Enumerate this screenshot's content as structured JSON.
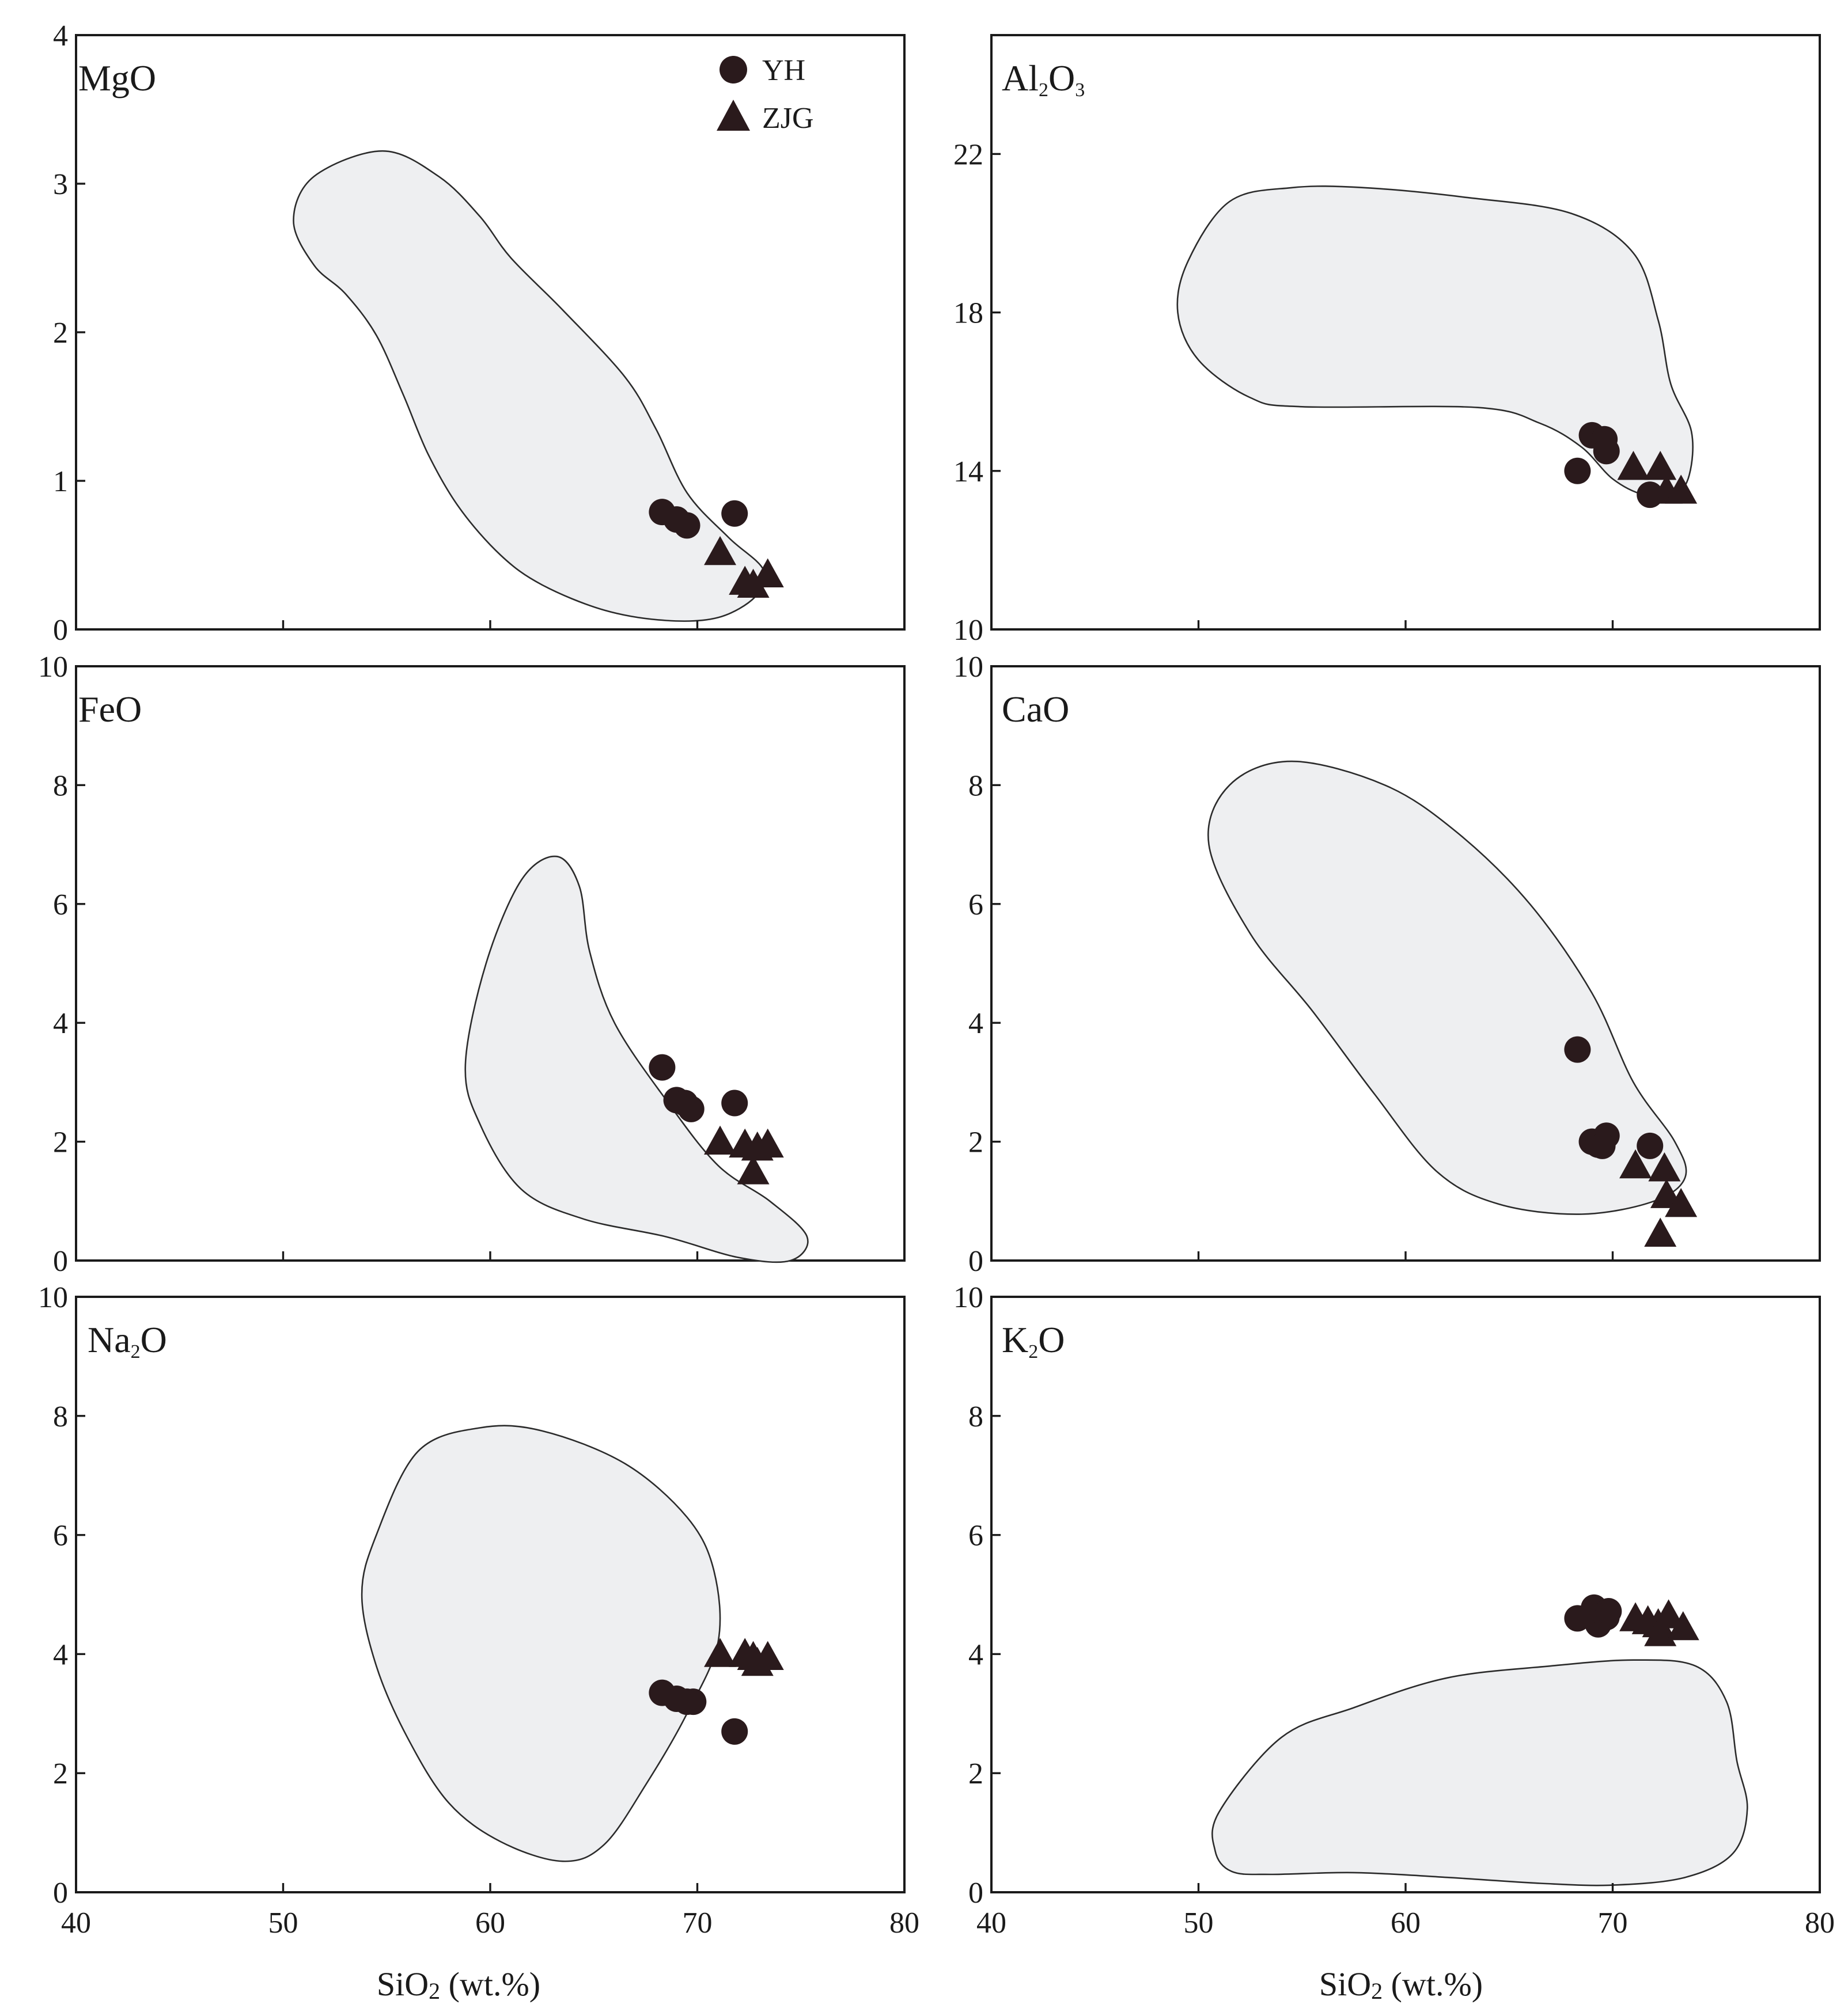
{
  "figure": {
    "xlabel": {
      "main": "SiO",
      "sub": "2",
      "rest": " (wt.%)"
    },
    "legend": [
      {
        "label": "YH",
        "marker": "circle"
      },
      {
        "label": "ZJG",
        "marker": "triangle"
      }
    ],
    "colors": {
      "marker": "#2a1a1c",
      "field_fill": "#eeeff1",
      "field_line": "#2b2b2b",
      "axis": "#1a1a1a"
    }
  },
  "chart_data": [
    {
      "type": "scatter",
      "title": {
        "main": "MgO",
        "parts": [
          [
            "MgO",
            false
          ]
        ]
      },
      "xlabel": "",
      "ylabel": "MgO",
      "xlim": [
        40,
        80
      ],
      "ylim": [
        0,
        4
      ],
      "xticks": [
        40,
        50,
        60,
        70,
        80
      ],
      "yticks": [
        0,
        1,
        2,
        3,
        4
      ],
      "show_x_labels": false,
      "field": [
        [
          54.8,
          3.22
        ],
        [
          51.5,
          3.05
        ],
        [
          50.5,
          2.75
        ],
        [
          51.5,
          2.45
        ],
        [
          53.0,
          2.26
        ],
        [
          54.5,
          1.98
        ],
        [
          55.8,
          1.58
        ],
        [
          57.0,
          1.18
        ],
        [
          58.5,
          0.82
        ],
        [
          60.5,
          0.5
        ],
        [
          62.5,
          0.3
        ],
        [
          65.5,
          0.13
        ],
        [
          68.5,
          0.06
        ],
        [
          71.0,
          0.08
        ],
        [
          72.8,
          0.22
        ],
        [
          73.2,
          0.4
        ],
        [
          71.5,
          0.62
        ],
        [
          69.5,
          0.92
        ],
        [
          68.0,
          1.35
        ],
        [
          66.5,
          1.7
        ],
        [
          63.5,
          2.15
        ],
        [
          61.0,
          2.5
        ],
        [
          59.5,
          2.78
        ],
        [
          57.5,
          3.05
        ]
      ],
      "series": [
        {
          "name": "YH",
          "marker": "circle",
          "points": [
            [
              68.3,
              0.79
            ],
            [
              69.0,
              0.74
            ],
            [
              69.5,
              0.7
            ],
            [
              71.8,
              0.78
            ]
          ]
        },
        {
          "name": "ZJG",
          "marker": "triangle",
          "points": [
            [
              71.1,
              0.52
            ],
            [
              72.3,
              0.32
            ],
            [
              72.7,
              0.3
            ],
            [
              73.4,
              0.37
            ]
          ]
        }
      ]
    },
    {
      "type": "scatter",
      "title": {
        "main": "Al2O3",
        "parts": [
          [
            "Al",
            false
          ],
          [
            "2",
            true
          ],
          [
            "O",
            false
          ],
          [
            "3",
            true
          ]
        ]
      },
      "xlabel": "",
      "ylabel": "Al2O3",
      "xlim": [
        40,
        80
      ],
      "ylim": [
        10,
        25
      ],
      "xticks": [
        40,
        50,
        60,
        70,
        80
      ],
      "yticks": [
        10,
        14,
        18,
        22
      ],
      "show_x_labels": false,
      "field": [
        [
          54.5,
          21.15
        ],
        [
          51.5,
          20.8
        ],
        [
          49.5,
          19.3
        ],
        [
          49.0,
          18.0
        ],
        [
          50.0,
          16.8
        ],
        [
          52.5,
          15.85
        ],
        [
          55.0,
          15.62
        ],
        [
          63.5,
          15.6
        ],
        [
          66.5,
          15.2
        ],
        [
          68.5,
          14.6
        ],
        [
          70.0,
          13.8
        ],
        [
          71.5,
          13.4
        ],
        [
          73.0,
          13.4
        ],
        [
          73.7,
          13.9
        ],
        [
          73.8,
          15.0
        ],
        [
          72.8,
          16.2
        ],
        [
          72.2,
          17.8
        ],
        [
          71.0,
          19.5
        ],
        [
          68.0,
          20.5
        ],
        [
          63.0,
          20.9
        ],
        [
          58.0,
          21.15
        ]
      ],
      "series": [
        {
          "name": "YH",
          "marker": "circle",
          "points": [
            [
              68.3,
              14.0
            ],
            [
              69.0,
              14.9
            ],
            [
              69.6,
              14.8
            ],
            [
              69.7,
              14.5
            ],
            [
              71.8,
              13.4
            ]
          ]
        },
        {
          "name": "ZJG",
          "marker": "triangle",
          "points": [
            [
              71.0,
              14.1
            ],
            [
              72.3,
              14.1
            ],
            [
              72.6,
              13.5
            ],
            [
              73.3,
              13.5
            ]
          ]
        }
      ]
    },
    {
      "type": "scatter",
      "title": {
        "main": "FeO",
        "parts": [
          [
            "FeO",
            false
          ]
        ]
      },
      "xlabel": "",
      "ylabel": "FeO",
      "xlim": [
        40,
        80
      ],
      "ylim": [
        0,
        10
      ],
      "xticks": [
        40,
        50,
        60,
        70,
        80
      ],
      "yticks": [
        0,
        2,
        4,
        6,
        8,
        10
      ],
      "show_x_labels": false,
      "field": [
        [
          63.2,
          6.8
        ],
        [
          61.5,
          6.4
        ],
        [
          59.8,
          5.0
        ],
        [
          58.8,
          3.3
        ],
        [
          59.5,
          2.3
        ],
        [
          61.5,
          1.2
        ],
        [
          64.5,
          0.7
        ],
        [
          68.5,
          0.4
        ],
        [
          72.0,
          0.05
        ],
        [
          74.5,
          0.0
        ],
        [
          75.3,
          0.4
        ],
        [
          73.5,
          1.0
        ],
        [
          71.0,
          1.6
        ],
        [
          68.5,
          2.7
        ],
        [
          66.0,
          4.0
        ],
        [
          64.8,
          5.2
        ],
        [
          64.3,
          6.3
        ]
      ],
      "series": [
        {
          "name": "YH",
          "marker": "circle",
          "points": [
            [
              68.3,
              3.25
            ],
            [
              69.0,
              2.7
            ],
            [
              69.4,
              2.65
            ],
            [
              69.7,
              2.55
            ],
            [
              71.8,
              2.65
            ]
          ]
        },
        {
          "name": "ZJG",
          "marker": "triangle",
          "points": [
            [
              71.1,
              2.0
            ],
            [
              72.3,
              1.95
            ],
            [
              72.7,
              1.5
            ],
            [
              73.4,
              1.95
            ],
            [
              72.9,
              1.9
            ]
          ]
        }
      ]
    },
    {
      "type": "scatter",
      "title": {
        "main": "CaO",
        "parts": [
          [
            "CaO",
            false
          ]
        ]
      },
      "xlabel": "",
      "ylabel": "CaO",
      "xlim": [
        40,
        80
      ],
      "ylim": [
        0,
        10
      ],
      "xticks": [
        40,
        50,
        60,
        70,
        80
      ],
      "yticks": [
        0,
        2,
        4,
        6,
        8,
        10
      ],
      "show_x_labels": false,
      "field": [
        [
          54.5,
          8.4
        ],
        [
          51.5,
          8.0
        ],
        [
          50.5,
          7.0
        ],
        [
          52.5,
          5.5
        ],
        [
          55.5,
          4.2
        ],
        [
          58.5,
          2.8
        ],
        [
          61.5,
          1.5
        ],
        [
          64.5,
          0.95
        ],
        [
          68.5,
          0.78
        ],
        [
          72.0,
          1.0
        ],
        [
          73.5,
          1.4
        ],
        [
          73.0,
          2.0
        ],
        [
          71.0,
          3.0
        ],
        [
          69.0,
          4.5
        ],
        [
          66.0,
          6.0
        ],
        [
          62.5,
          7.2
        ],
        [
          59.0,
          8.0
        ]
      ],
      "series": [
        {
          "name": "YH",
          "marker": "circle",
          "points": [
            [
              68.3,
              3.55
            ],
            [
              69.0,
              2.0
            ],
            [
              69.3,
              1.95
            ],
            [
              69.7,
              2.1
            ],
            [
              69.5,
              1.93
            ],
            [
              71.8,
              1.93
            ]
          ]
        },
        {
          "name": "ZJG",
          "marker": "triangle",
          "points": [
            [
              71.1,
              1.6
            ],
            [
              72.5,
              1.55
            ],
            [
              72.6,
              1.1
            ],
            [
              73.3,
              0.95
            ],
            [
              72.3,
              0.45
            ]
          ]
        }
      ]
    },
    {
      "type": "scatter",
      "title": {
        "main": "Na2O",
        "parts": [
          [
            "Na",
            false
          ],
          [
            "2",
            true
          ],
          [
            "O",
            false
          ]
        ]
      },
      "xlabel": "SiO2 (wt.%)",
      "ylabel": "Na2O",
      "xlim": [
        40,
        80
      ],
      "ylim": [
        0,
        10
      ],
      "xticks": [
        40,
        50,
        60,
        70,
        80
      ],
      "yticks": [
        0,
        2,
        4,
        6,
        8,
        10
      ],
      "show_x_labels": true,
      "field": [
        [
          59.5,
          7.8
        ],
        [
          56.5,
          7.4
        ],
        [
          54.5,
          6.0
        ],
        [
          53.8,
          5.0
        ],
        [
          54.5,
          3.8
        ],
        [
          56.0,
          2.6
        ],
        [
          58.0,
          1.5
        ],
        [
          60.5,
          0.85
        ],
        [
          63.5,
          0.52
        ],
        [
          65.5,
          0.8
        ],
        [
          67.5,
          1.8
        ],
        [
          69.5,
          3.0
        ],
        [
          71.0,
          4.2
        ],
        [
          70.8,
          5.4
        ],
        [
          69.5,
          6.3
        ],
        [
          66.5,
          7.2
        ],
        [
          62.5,
          7.75
        ]
      ],
      "series": [
        {
          "name": "YH",
          "marker": "circle",
          "points": [
            [
              68.3,
              3.35
            ],
            [
              69.0,
              3.25
            ],
            [
              69.5,
              3.2
            ],
            [
              69.8,
              3.2
            ],
            [
              71.8,
              2.7
            ]
          ]
        },
        {
          "name": "ZJG",
          "marker": "triangle",
          "points": [
            [
              71.1,
              4.0
            ],
            [
              72.3,
              4.0
            ],
            [
              72.7,
              3.95
            ],
            [
              73.4,
              3.95
            ],
            [
              72.9,
              3.85
            ]
          ]
        }
      ]
    },
    {
      "type": "scatter",
      "title": {
        "main": "K2O",
        "parts": [
          [
            "K",
            false
          ],
          [
            "2",
            true
          ],
          [
            "O",
            false
          ]
        ]
      },
      "xlabel": "SiO2 (wt.%)",
      "ylabel": "K2O",
      "xlim": [
        40,
        80
      ],
      "ylim": [
        0,
        10
      ],
      "xticks": [
        40,
        50,
        60,
        70,
        80
      ],
      "yticks": [
        0,
        2,
        4,
        6,
        8,
        10
      ],
      "show_x_labels": true,
      "field": [
        [
          51.0,
          1.35
        ],
        [
          50.8,
          0.7
        ],
        [
          51.6,
          0.35
        ],
        [
          53.5,
          0.3
        ],
        [
          57.5,
          0.33
        ],
        [
          62.0,
          0.25
        ],
        [
          66.5,
          0.15
        ],
        [
          70.0,
          0.12
        ],
        [
          73.5,
          0.25
        ],
        [
          75.8,
          0.65
        ],
        [
          76.5,
          1.4
        ],
        [
          76.0,
          2.2
        ],
        [
          75.5,
          3.2
        ],
        [
          74.0,
          3.8
        ],
        [
          71.0,
          3.9
        ],
        [
          67.0,
          3.8
        ],
        [
          62.0,
          3.6
        ],
        [
          57.5,
          3.1
        ],
        [
          54.0,
          2.6
        ]
      ],
      "series": [
        {
          "name": "YH",
          "marker": "circle",
          "points": [
            [
              68.3,
              4.6
            ],
            [
              68.9,
              4.65
            ],
            [
              69.1,
              4.78
            ],
            [
              69.3,
              4.5
            ],
            [
              69.7,
              4.62
            ],
            [
              69.8,
              4.72
            ]
          ]
        },
        {
          "name": "ZJG",
          "marker": "triangle",
          "points": [
            [
              71.1,
              4.6
            ],
            [
              71.7,
              4.55
            ],
            [
              72.2,
              4.5
            ],
            [
              72.3,
              4.35
            ],
            [
              72.7,
              4.65
            ],
            [
              73.4,
              4.45
            ]
          ]
        }
      ]
    }
  ]
}
